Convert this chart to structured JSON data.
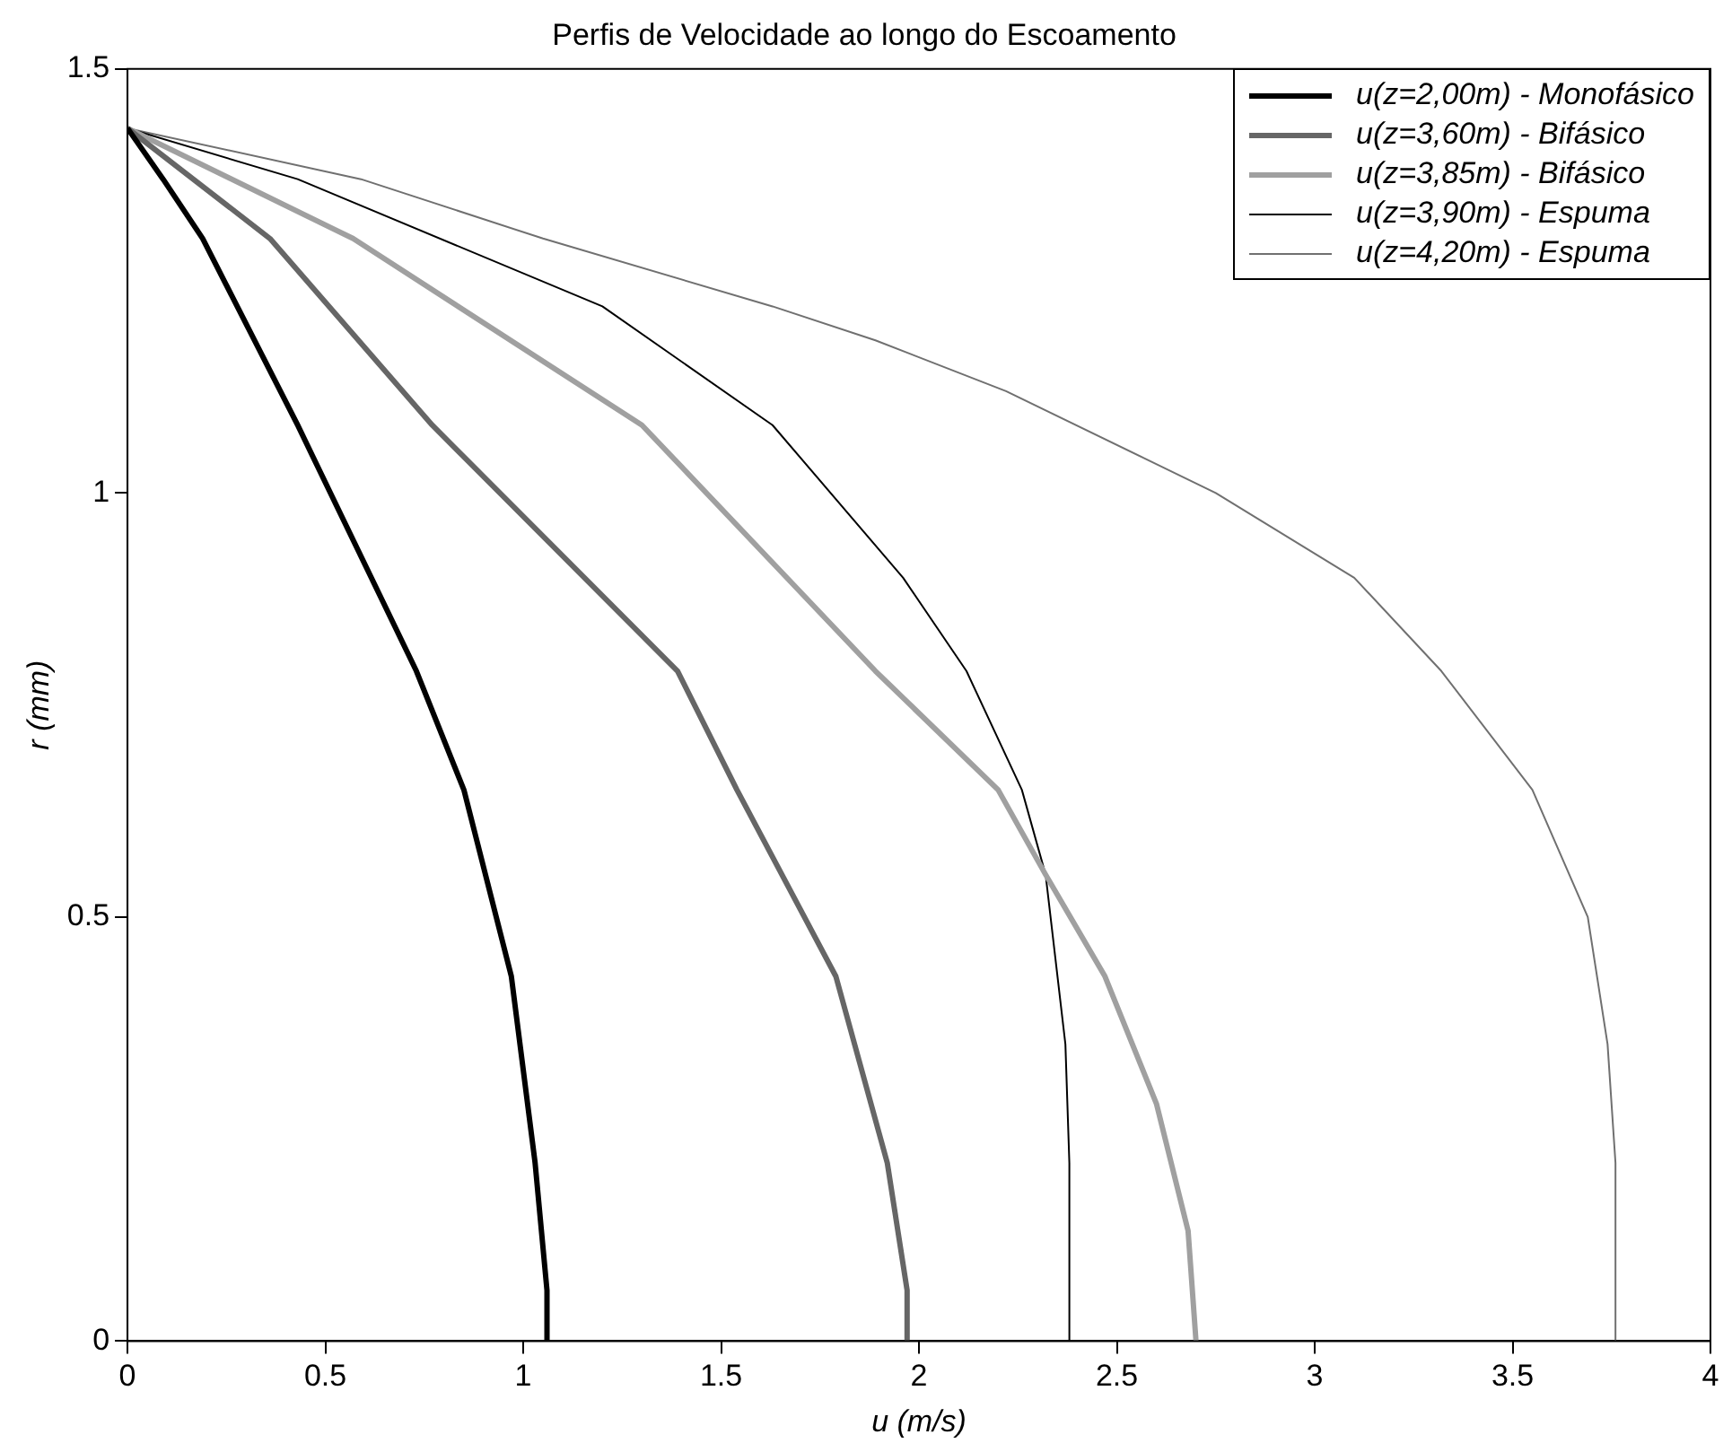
{
  "chart_data": {
    "type": "line",
    "title": "Perfis de Velocidade ao longo do Escoamento",
    "xlabel": "u (m/s)",
    "ylabel": "r (mm)",
    "xlim": [
      0,
      4
    ],
    "xticks": [
      0,
      0.5,
      1,
      1.5,
      2,
      2.5,
      3,
      3.5,
      4
    ],
    "ylim": [
      0,
      1.5
    ],
    "yticks": [
      0,
      0.5,
      1,
      1.5
    ],
    "grid": false,
    "legend": "top right",
    "marker": "none",
    "line_style": "solid",
    "series": [
      {
        "name": "u(z=2,00m) - Monofásico",
        "color": "#000000",
        "x": [
          0,
          0.09,
          0.19,
          0.43,
          0.73,
          0.85,
          0.97,
          1.03,
          1.06,
          1.06
        ],
        "values": [
          1.43,
          1.37,
          1.3,
          1.08,
          0.79,
          0.65,
          0.43,
          0.21,
          0.06,
          0
        ]
      },
      {
        "name": "u(z=3,60m) - Bifásico",
        "color": "#666666",
        "x": [
          0,
          0.36,
          0.77,
          1.39,
          1.54,
          1.79,
          1.92,
          1.97,
          1.97
        ],
        "values": [
          1.43,
          1.3,
          1.08,
          0.79,
          0.65,
          0.43,
          0.21,
          0.06,
          0
        ]
      },
      {
        "name": "u(z=3,85m) - Bifásico",
        "color": "#a0a0a0",
        "x": [
          0,
          0.57,
          1.3,
          1.89,
          2.2,
          2.32,
          2.47,
          2.6,
          2.68,
          2.7
        ],
        "values": [
          1.43,
          1.3,
          1.08,
          0.79,
          0.65,
          0.55,
          0.43,
          0.28,
          0.13,
          0
        ]
      },
      {
        "name": "u(z=3,90m) - Espuma",
        "color": "#000000",
        "x": [
          0,
          0.43,
          1.2,
          1.63,
          1.96,
          2.12,
          2.26,
          2.32,
          2.37,
          2.38,
          2.38
        ],
        "values": [
          1.43,
          1.37,
          1.22,
          1.08,
          0.9,
          0.79,
          0.65,
          0.55,
          0.35,
          0.21,
          0
        ]
      },
      {
        "name": "u(z=4,20m) - Espuma",
        "color": "#707070",
        "x": [
          0,
          0.59,
          1.05,
          1.63,
          1.89,
          2.22,
          2.75,
          3.1,
          3.32,
          3.55,
          3.69,
          3.74,
          3.76,
          3.76
        ],
        "values": [
          1.43,
          1.37,
          1.3,
          1.22,
          1.18,
          1.12,
          1.0,
          0.9,
          0.79,
          0.65,
          0.5,
          0.35,
          0.21,
          0
        ]
      }
    ]
  }
}
